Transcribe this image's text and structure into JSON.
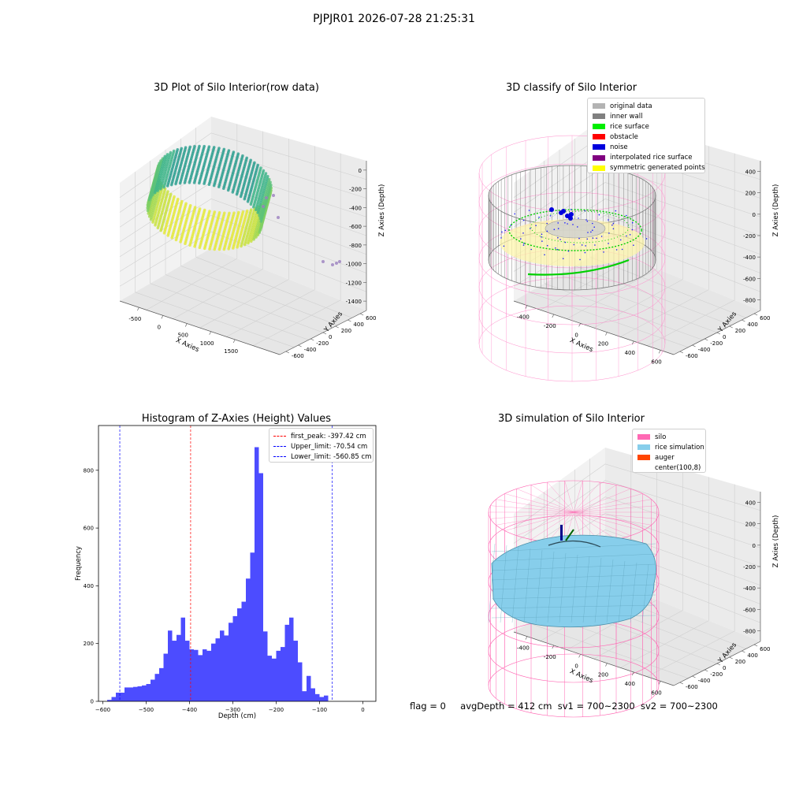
{
  "suptitle": "PJPJR01 2026-07-28 21:25:31",
  "panels": {
    "raw": {
      "title": "3D Plot of Silo Interior(row data)",
      "xlabel": "X Axies",
      "ylabel": "Y Axies",
      "zlabel": "Z Axies (Depth)",
      "xticks": [
        "-500",
        "0",
        "500",
        "1000",
        "1500"
      ],
      "yticks": [
        "600",
        "400",
        "200",
        "0",
        "-200",
        "-400",
        "-600"
      ],
      "zticks": [
        "0",
        "-200",
        "-400",
        "-600",
        "-800",
        "-1000",
        "-1200",
        "-1400"
      ]
    },
    "classify": {
      "title": "3D classify of Silo Interior",
      "xlabel": "X Axies",
      "ylabel": "Y Axies",
      "zlabel": "Z Axies (Depth)",
      "xticks": [
        "-400",
        "-200",
        "0",
        "200",
        "400",
        "600"
      ],
      "yticks": [
        "600",
        "400",
        "200",
        "0",
        "-200",
        "-400",
        "-600"
      ],
      "zticks": [
        "400",
        "200",
        "0",
        "-200",
        "-400",
        "-600",
        "-800"
      ],
      "legend": [
        {
          "label": "original data",
          "color": "#b3b3b3"
        },
        {
          "label": "inner wall",
          "color": "#808080"
        },
        {
          "label": "rice surface",
          "color": "#00ee00"
        },
        {
          "label": "obstacle",
          "color": "#ff0000"
        },
        {
          "label": "noise",
          "color": "#0000dd"
        },
        {
          "label": "interpolated rice surface",
          "color": "#800080"
        },
        {
          "label": "symmetric generated points",
          "color": "#ffff00"
        }
      ]
    },
    "simulation": {
      "title": "3D simulation of Silo Interior",
      "xlabel": "X Axies",
      "ylabel": "Y Axies",
      "zlabel": "Z Axies (Depth)",
      "xticks": [
        "-400",
        "-200",
        "0",
        "200",
        "400",
        "600"
      ],
      "yticks": [
        "600",
        "400",
        "200",
        "0",
        "-200",
        "-400",
        "-600"
      ],
      "zticks": [
        "400",
        "200",
        "0",
        "-200",
        "-400",
        "-600",
        "-800"
      ],
      "legend": [
        {
          "label": "silo",
          "color": "#ff69b4"
        },
        {
          "label": "rice simulation",
          "color": "#87ceeb"
        },
        {
          "label": "auger",
          "color": "#ff4500"
        },
        {
          "label": "center(100,8)",
          "color": ""
        }
      ]
    }
  },
  "chart_data": {
    "type": "bar",
    "title": "Histogram of Z-Axies (Height) Values",
    "xlabel": "Depth (cm)",
    "ylabel": "Frequency",
    "xlim": [
      -610,
      30
    ],
    "ylim": [
      0,
      955
    ],
    "bin_width": 10,
    "bin_starts": [
      -590,
      -580,
      -570,
      -560,
      -550,
      -540,
      -530,
      -520,
      -510,
      -500,
      -490,
      -480,
      -470,
      -460,
      -450,
      -440,
      -430,
      -420,
      -410,
      -400,
      -390,
      -380,
      -370,
      -360,
      -350,
      -340,
      -330,
      -320,
      -310,
      -300,
      -290,
      -280,
      -270,
      -260,
      -250,
      -240,
      -230,
      -220,
      -210,
      -200,
      -190,
      -180,
      -170,
      -160,
      -150,
      -140,
      -130,
      -120,
      -110,
      -100,
      -90,
      -80,
      -70,
      -60,
      -50,
      -40,
      -30,
      -20,
      -10
    ],
    "values": [
      5,
      15,
      30,
      30,
      48,
      48,
      50,
      52,
      55,
      60,
      75,
      95,
      115,
      165,
      245,
      210,
      230,
      290,
      210,
      180,
      178,
      160,
      180,
      175,
      200,
      218,
      245,
      228,
      272,
      295,
      322,
      345,
      425,
      515,
      880,
      790,
      242,
      158,
      148,
      175,
      188,
      265,
      290,
      210,
      135,
      35,
      88,
      45,
      25,
      15,
      20,
      0,
      0,
      0,
      0,
      0,
      0,
      0,
      0
    ],
    "bar_color": "#0000ff",
    "bar_alpha": 0.7,
    "xticks": [
      -600,
      -500,
      -400,
      -300,
      -200,
      -100,
      0
    ],
    "yticks": [
      0,
      200,
      400,
      600,
      800
    ],
    "vlines": [
      {
        "label": "first_peak: -397.42 cm",
        "x": -397.42,
        "color": "#ff0000"
      },
      {
        "label": "Upper_limit: -70.54 cm",
        "x": -70.54,
        "color": "#0000ff"
      },
      {
        "label": "Lower_limit: -560.85 cm",
        "x": -560.85,
        "color": "#0000ff"
      }
    ],
    "legend_position": "top-right"
  },
  "footer": {
    "flag": "flag = 0",
    "avg": "avgDepth = 412 cm",
    "sv1": "sv1 = 700~2300",
    "sv2": "sv2 = 700~2300"
  }
}
